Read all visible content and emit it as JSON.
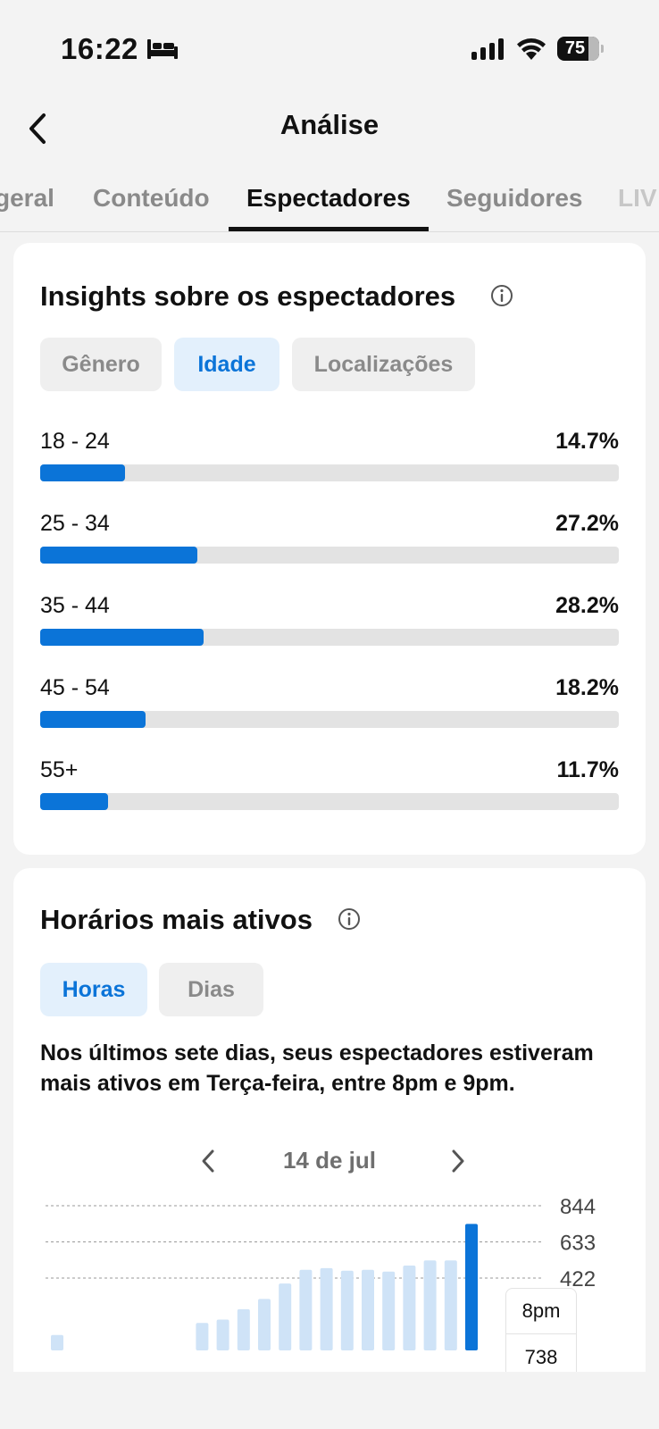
{
  "status_bar": {
    "time": "16:22",
    "battery_percent": 75,
    "icons": [
      "bed-icon",
      "signal-icon",
      "wifi-icon",
      "battery-icon"
    ]
  },
  "header": {
    "title": "Análise",
    "back_icon": "chevron-left-icon"
  },
  "tabs": [
    {
      "label": "geral",
      "active": false
    },
    {
      "label": "Conteúdo",
      "active": false
    },
    {
      "label": "Espectadores",
      "active": true
    },
    {
      "label": "Seguidores",
      "active": false
    },
    {
      "label": "LIV",
      "active": false
    }
  ],
  "viewer_insights": {
    "title": "Insights sobre os espectadores",
    "filters": [
      {
        "label": "Gênero",
        "active": false
      },
      {
        "label": "Idade",
        "active": true
      },
      {
        "label": "Localizações",
        "active": false
      }
    ],
    "age_groups": [
      {
        "label": "18 - 24",
        "value": "14.7%",
        "percent": 14.7
      },
      {
        "label": "25 - 34",
        "value": "27.2%",
        "percent": 27.2
      },
      {
        "label": "35 - 44",
        "value": "28.2%",
        "percent": 28.2
      },
      {
        "label": "45 - 54",
        "value": "18.2%",
        "percent": 18.2
      },
      {
        "label": "55+",
        "value": "11.7%",
        "percent": 11.7
      }
    ],
    "colors": {
      "accent": "#0b74d8",
      "track": "#e3e3e3"
    }
  },
  "active_times": {
    "title": "Horários mais ativos",
    "filters": [
      {
        "label": "Horas",
        "active": true
      },
      {
        "label": "Dias",
        "active": false
      }
    ],
    "summary": "Nos últimos sete dias, seus espectadores estiveram mais ativos em Terça-feira, entre 8pm e 9pm.",
    "date": "14 de jul",
    "tooltip": {
      "hour": "8pm",
      "value": "738"
    }
  },
  "chart_data": {
    "type": "bar",
    "y_ticks": [
      "844",
      "633",
      "422"
    ],
    "ylim": [
      0,
      844
    ],
    "x": [
      0,
      1,
      2,
      3,
      4,
      5,
      6,
      7,
      8,
      9,
      10,
      11,
      12,
      13,
      14,
      15,
      16,
      17,
      18,
      19,
      20
    ],
    "values": [
      90,
      0,
      0,
      0,
      0,
      0,
      0,
      160,
      180,
      240,
      300,
      390,
      470,
      480,
      465,
      470,
      460,
      495,
      525,
      525,
      738
    ],
    "highlight_index": 20,
    "colors": {
      "bar": "#cfe3f7",
      "highlight": "#0b74d8",
      "grid": "#9a9a9a"
    }
  }
}
